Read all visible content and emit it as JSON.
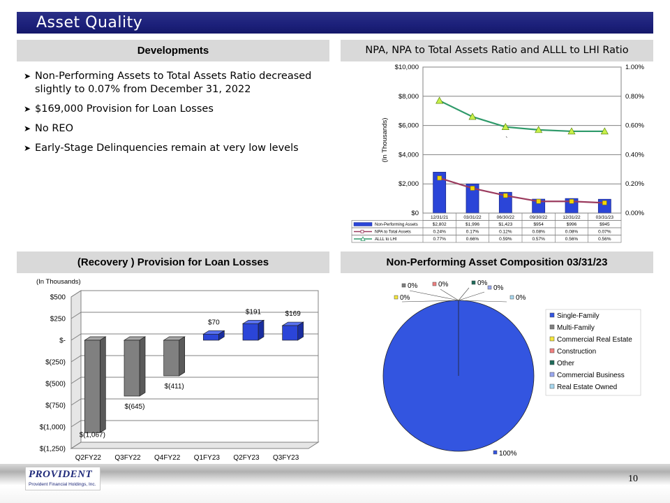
{
  "header": {
    "title": "Asset Quality"
  },
  "developments": {
    "heading": "Developments",
    "bullets": [
      "Non-Performing Assets to Total Assets Ratio decreased slightly to 0.07% from December 31, 2022",
      "$169,000 Provision for Loan Losses",
      "No REO",
      "Early-Stage Delinquencies remain at very low levels"
    ]
  },
  "npa_heading": "NPA, NPA to Total Assets Ratio and ALLL to LHI Ratio",
  "provision_heading": "(Recovery ) Provision for Loan Losses",
  "composition_heading": "Non-Performing Asset Composition 03/31/23",
  "footer": {
    "logo_text": "PROVIDENT",
    "logo_sub": "Provident Financial Holdings, Inc.",
    "page_number": "10"
  },
  "chart_data": [
    {
      "type": "bar",
      "title": "NPA, NPA to Total Assets Ratio and ALLL to LHI Ratio",
      "ylabel": "(In Thousands)",
      "ylim": [
        0,
        10000
      ],
      "y2lim": [
        0,
        1.0
      ],
      "y_ticks": [
        "$0",
        "$2,000",
        "$4,000",
        "$6,000",
        "$8,000",
        "$10,000"
      ],
      "y2_ticks": [
        "0.00%",
        "0.20%",
        "0.40%",
        "0.60%",
        "0.80%",
        "1.00%"
      ],
      "categories": [
        "12/31/21",
        "03/31/22",
        "06/30/22",
        "09/30/22",
        "12/31/22",
        "03/31/23"
      ],
      "series": [
        {
          "name": "Non-Performing Assets",
          "kind": "bar",
          "axis": "left",
          "color": "#2b45d8",
          "values": [
            2802,
            1996,
            1423,
            954,
            996,
            945
          ],
          "table": [
            "$2,802",
            "$1,996",
            "$1,423",
            "$954",
            "$996",
            "$945"
          ]
        },
        {
          "name": "NPA to Total Assets",
          "kind": "line",
          "axis": "right",
          "color": "#9b3b5e",
          "marker_color": "#f2d600",
          "values": [
            0.24,
            0.17,
            0.12,
            0.08,
            0.08,
            0.07
          ],
          "table": [
            "0.24%",
            "0.17%",
            "0.12%",
            "0.08%",
            "0.08%",
            "0.07%"
          ]
        },
        {
          "name": "ALLL to LHI",
          "kind": "line",
          "axis": "right",
          "color": "#2f9a6a",
          "marker_color": "#c8f04a",
          "values": [
            0.77,
            0.66,
            0.59,
            0.57,
            0.56,
            0.56
          ],
          "table": [
            "0.77%",
            "0.66%",
            "0.59%",
            "0.57%",
            "0.56%",
            "0.56%"
          ]
        }
      ],
      "stray_mark": "`"
    },
    {
      "type": "bar",
      "title": "(Recovery ) Provision for Loan Losses",
      "units_label": "(In Thousands)",
      "ylim": [
        -1250,
        500
      ],
      "y_ticks": [
        "$(1,250)",
        "$(1,000)",
        "$(750)",
        "$(500)",
        "$(250)",
        "$-",
        "$250",
        "$500"
      ],
      "categories": [
        "Q2FY22",
        "Q3FY22",
        "Q4FY22",
        "Q1FY23",
        "Q2FY23",
        "Q3FY23"
      ],
      "values": [
        -1067,
        -645,
        -411,
        70,
        191,
        169
      ],
      "data_labels": [
        "$(1,067)",
        "$(645)",
        "$(411)",
        "$70",
        "$191",
        "$169"
      ],
      "colors": {
        "negative": "#808080",
        "positive": "#2b45d8"
      }
    },
    {
      "type": "pie",
      "title": "Non-Performing Asset Composition 03/31/23",
      "slices": [
        {
          "name": "Single-Family",
          "value": 100,
          "label": "100%",
          "color": "#3355e0"
        },
        {
          "name": "Multi-Family",
          "value": 0,
          "label": "0%",
          "color": "#808080"
        },
        {
          "name": "Commercial Real Estate",
          "value": 0,
          "label": "0%",
          "color": "#f5e63c"
        },
        {
          "name": "Construction",
          "value": 0,
          "label": "0%",
          "color": "#f08080"
        },
        {
          "name": "Other",
          "value": 0,
          "label": "0%",
          "color": "#1f6b5a"
        },
        {
          "name": "Commercial Business",
          "value": 0,
          "label": "0%",
          "color": "#9aa8f0"
        },
        {
          "name": "Real Estate Owned",
          "value": 0,
          "label": "0%",
          "color": "#a8d8f0"
        }
      ],
      "legend_position": "right"
    }
  ]
}
